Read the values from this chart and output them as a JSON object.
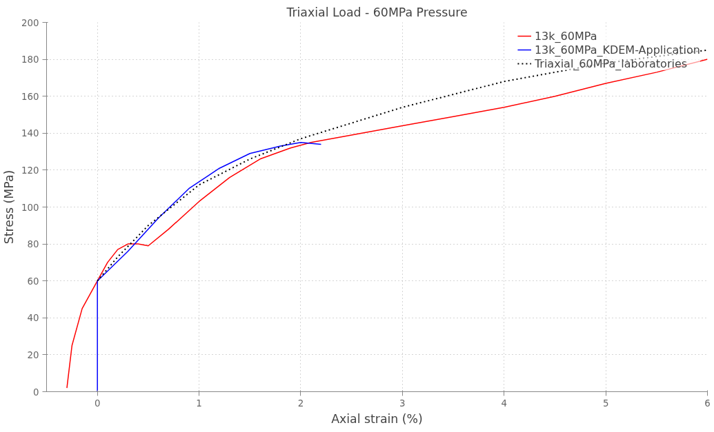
{
  "chart_data": {
    "type": "line",
    "title": "Triaxial Load - 60MPa Pressure",
    "xlabel": "Axial strain (%)",
    "ylabel": "Stress (MPa)",
    "xlim": [
      -0.5,
      6
    ],
    "xticks": [
      0,
      1,
      2,
      3,
      4,
      5,
      6
    ],
    "ylim": [
      0,
      200
    ],
    "yticks": [
      0,
      20,
      40,
      60,
      80,
      100,
      120,
      140,
      160,
      180,
      200
    ],
    "grid": true,
    "legend": "top right",
    "series": [
      {
        "name": "13k_60MPa",
        "color": "#ff0000",
        "line_style": "solid",
        "x": [
          -0.3,
          -0.25,
          -0.15,
          0,
          0.1,
          0.2,
          0.3,
          0.4,
          0.5,
          0.7,
          1.0,
          1.3,
          1.6,
          1.9,
          2.1,
          2.5,
          3,
          3.5,
          4,
          4.5,
          5,
          5.5,
          6
        ],
        "values": [
          2,
          25,
          45,
          60,
          70,
          77,
          80,
          80,
          79,
          88,
          103,
          116,
          126,
          132,
          135,
          139,
          144,
          149,
          154,
          160,
          167,
          173,
          180
        ]
      },
      {
        "name": "13k_60MPa_KDEM-Application",
        "color": "#0000ff",
        "line_style": "solid",
        "x": [
          0,
          0,
          0.3,
          0.6,
          0.9,
          1.2,
          1.5,
          1.8,
          2.0,
          2.2
        ],
        "values": [
          0,
          60,
          76,
          94,
          110,
          121,
          129,
          133,
          135,
          134
        ]
      },
      {
        "name": "Triaxial_60MPa_laboratories",
        "color": "#000000",
        "line_style": "dotted",
        "x": [
          0,
          0.2,
          0.5,
          1,
          1.5,
          2,
          3,
          4,
          5,
          6
        ],
        "values": [
          60,
          73,
          90,
          112,
          126,
          137,
          154,
          168,
          178,
          185
        ]
      }
    ]
  }
}
